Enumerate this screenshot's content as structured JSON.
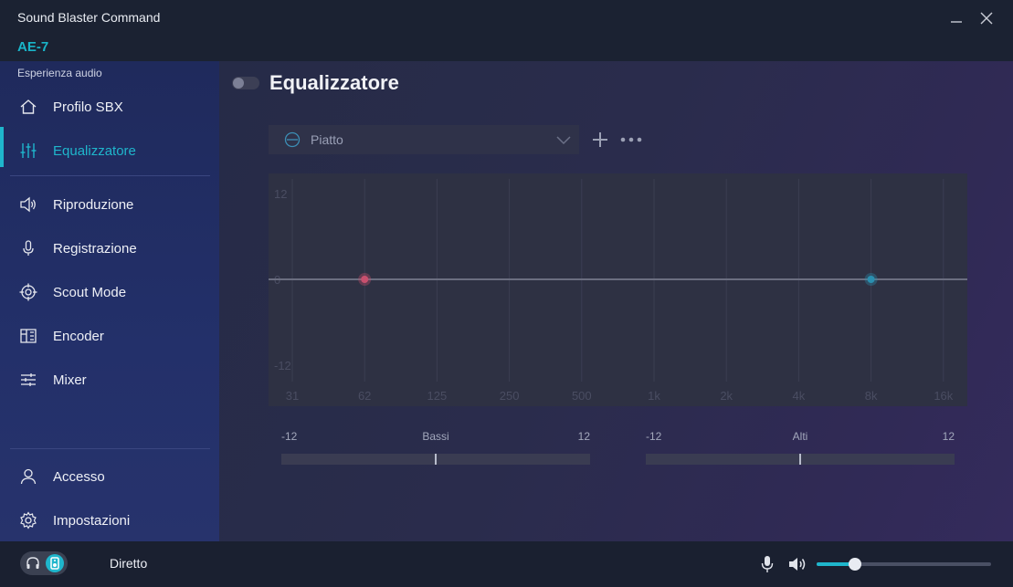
{
  "app": {
    "title": "Sound Blaster Command",
    "device": "AE-7"
  },
  "sidebar": {
    "section_label": "Esperienza audio",
    "items": [
      {
        "label": "Profilo SBX",
        "icon": "home-icon",
        "active": false
      },
      {
        "label": "Equalizzatore",
        "icon": "equalizer-icon",
        "active": true
      },
      {
        "label": "Riproduzione",
        "icon": "speaker-icon",
        "active": false
      },
      {
        "label": "Registrazione",
        "icon": "microphone-icon",
        "active": false
      },
      {
        "label": "Scout Mode",
        "icon": "crosshair-icon",
        "active": false
      },
      {
        "label": "Encoder",
        "icon": "encoder-icon",
        "active": false
      },
      {
        "label": "Mixer",
        "icon": "mixer-icon",
        "active": false
      }
    ],
    "footer_items": [
      {
        "label": "Accesso",
        "icon": "user-icon"
      },
      {
        "label": "Impostazioni",
        "icon": "gear-icon"
      }
    ]
  },
  "main": {
    "title": "Equalizzatore",
    "enabled": false,
    "preset": {
      "label": "Piatto"
    },
    "graph": {
      "y_labels": [
        "12",
        "0",
        "-12"
      ],
      "x_labels": [
        "31",
        "62",
        "125",
        "250",
        "500",
        "1k",
        "2k",
        "4k",
        "8k",
        "16k"
      ],
      "ylim": [
        -12,
        12
      ],
      "bass_point": {
        "freq": "62",
        "gain": 0
      },
      "treble_point": {
        "freq": "8k",
        "gain": 0
      }
    },
    "sliders": [
      {
        "name": "Bassi",
        "min": "-12",
        "max": "12",
        "value": 0
      },
      {
        "name": "Alti",
        "min": "-12",
        "max": "12",
        "value": 0
      }
    ]
  },
  "bottombar": {
    "mode_label": "Diretto",
    "volume_fraction": 0.22
  },
  "colors": {
    "accent": "#1fb6cc",
    "bass_point": "#c8506e",
    "treble_point": "#2a8fb0"
  }
}
